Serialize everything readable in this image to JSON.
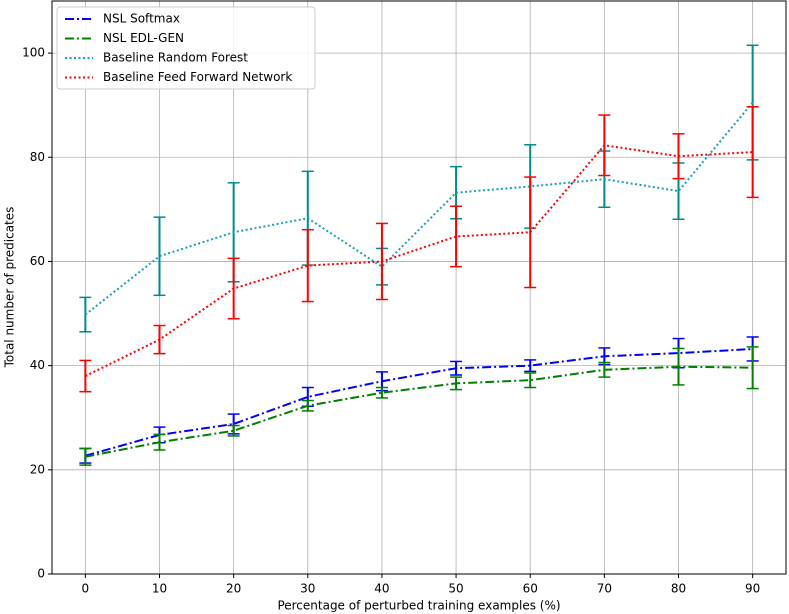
{
  "chart_data": {
    "type": "line",
    "x_label": "Percentage of perturbed training examples (%)",
    "y_label": "Total number of predicates",
    "x": [
      0,
      10,
      20,
      30,
      40,
      50,
      60,
      70,
      80,
      90
    ],
    "xlim": [
      -4.5,
      94.5
    ],
    "xticks": [
      0,
      10,
      20,
      30,
      40,
      50,
      60,
      70,
      80,
      90
    ],
    "ylim": [
      0,
      110
    ],
    "yticks": [
      0,
      20,
      40,
      60,
      80,
      100
    ],
    "grid": true,
    "legend": "upper-left",
    "series": [
      {
        "name": "NSL Softmax",
        "color": "#0000ff",
        "linestyle": "dashdot",
        "values": [
          22.7,
          26.7,
          28.8,
          34,
          37,
          39.5,
          40,
          41.8,
          42.4,
          43.2
        ],
        "errors": [
          1.4,
          1.5,
          1.9,
          1.8,
          1.8,
          1.3,
          1.1,
          1.6,
          2.8,
          2.3
        ]
      },
      {
        "name": "NSL EDL-GEN",
        "color": "#008000",
        "linestyle": "dashdot",
        "values": [
          22.5,
          25.3,
          27.5,
          32.3,
          34.8,
          36.6,
          37.2,
          39.2,
          39.8,
          39.6
        ],
        "errors": [
          1.6,
          1.5,
          1.0,
          1.0,
          1.0,
          1.2,
          1.4,
          1.4,
          3.5,
          4.0
        ]
      },
      {
        "name": "Baseline Random Forest",
        "color": "#17a2b8",
        "errcolor": "#008b8b",
        "linestyle": "dotted",
        "values": [
          49.8,
          61,
          65.6,
          68.3,
          59,
          73.2,
          74.4,
          75.8,
          73.5,
          90.5
        ],
        "errors": [
          3.3,
          7.5,
          9.5,
          9,
          3.5,
          5,
          8,
          5.4,
          5.4,
          11
        ]
      },
      {
        "name": "Baseline Feed Forward Network",
        "color": "#ff0000",
        "linestyle": "dotted",
        "values": [
          38,
          45,
          54.8,
          59.2,
          60,
          64.8,
          65.6,
          82.3,
          80.2,
          81
        ],
        "errors": [
          3,
          2.7,
          5.8,
          6.9,
          7.3,
          5.8,
          10.6,
          5.8,
          4.3,
          8.7
        ]
      }
    ]
  }
}
